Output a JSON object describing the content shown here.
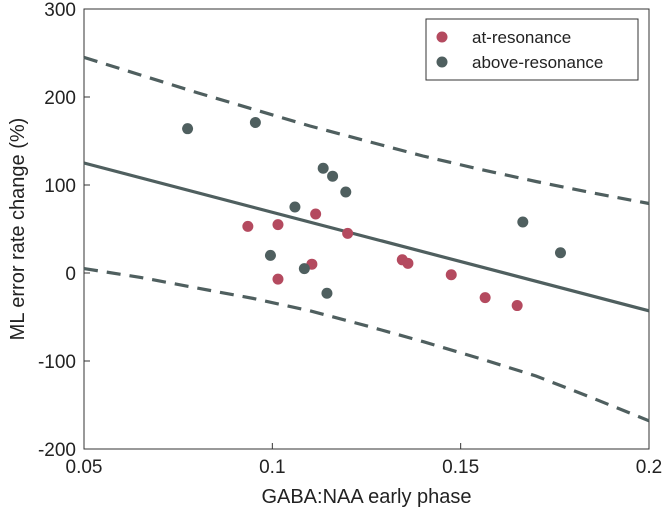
{
  "chart_data": {
    "type": "scatter",
    "title": "",
    "xlabel": "GABA:NAA early phase",
    "ylabel": "ML error rate change (%)",
    "xlim": [
      0.05,
      0.2
    ],
    "ylim": [
      -200,
      300
    ],
    "xticks": [
      0.05,
      0.1,
      0.15,
      0.2
    ],
    "xtick_labels": [
      "0.05",
      "0.1",
      "0.15",
      "0.2"
    ],
    "yticks": [
      -200,
      -100,
      0,
      100,
      200,
      300
    ],
    "ytick_labels": [
      "-200",
      "-100",
      "0",
      "100",
      "200",
      "300"
    ],
    "grid": false,
    "legend_position": "top-right",
    "series": [
      {
        "name": "at-resonance",
        "color": "#b44a5f",
        "x": [
          0.0935,
          0.1015,
          0.1015,
          0.1105,
          0.1115,
          0.12,
          0.1345,
          0.136,
          0.1475,
          0.1565,
          0.165
        ],
        "y": [
          53,
          55,
          -7,
          10,
          67,
          45,
          15,
          11,
          -2,
          -28,
          -37
        ]
      },
      {
        "name": "above-resonance",
        "color": "#4f5f5f",
        "x": [
          0.0775,
          0.0955,
          0.0995,
          0.106,
          0.1085,
          0.1135,
          0.1145,
          0.116,
          0.1195,
          0.1665,
          0.1765
        ],
        "y": [
          164,
          171,
          20,
          75,
          5,
          119,
          -23,
          110,
          92,
          58,
          23
        ]
      }
    ],
    "fit_line": {
      "x": [
        0.05,
        0.2
      ],
      "y": [
        125,
        -43
      ],
      "color": "#4f5f5f"
    },
    "confidence_upper": {
      "x": [
        0.05,
        0.065,
        0.08,
        0.095,
        0.11,
        0.125,
        0.14,
        0.155,
        0.17,
        0.185,
        0.2
      ],
      "y": [
        245,
        225,
        205,
        186,
        167,
        150,
        133,
        118,
        104,
        91,
        79
      ]
    },
    "confidence_lower": {
      "x": [
        0.05,
        0.065,
        0.08,
        0.095,
        0.11,
        0.125,
        0.14,
        0.155,
        0.17,
        0.185,
        0.2
      ],
      "y": [
        5,
        -5,
        -17,
        -29,
        -43,
        -60,
        -78,
        -97,
        -117,
        -142,
        -168
      ]
    }
  }
}
